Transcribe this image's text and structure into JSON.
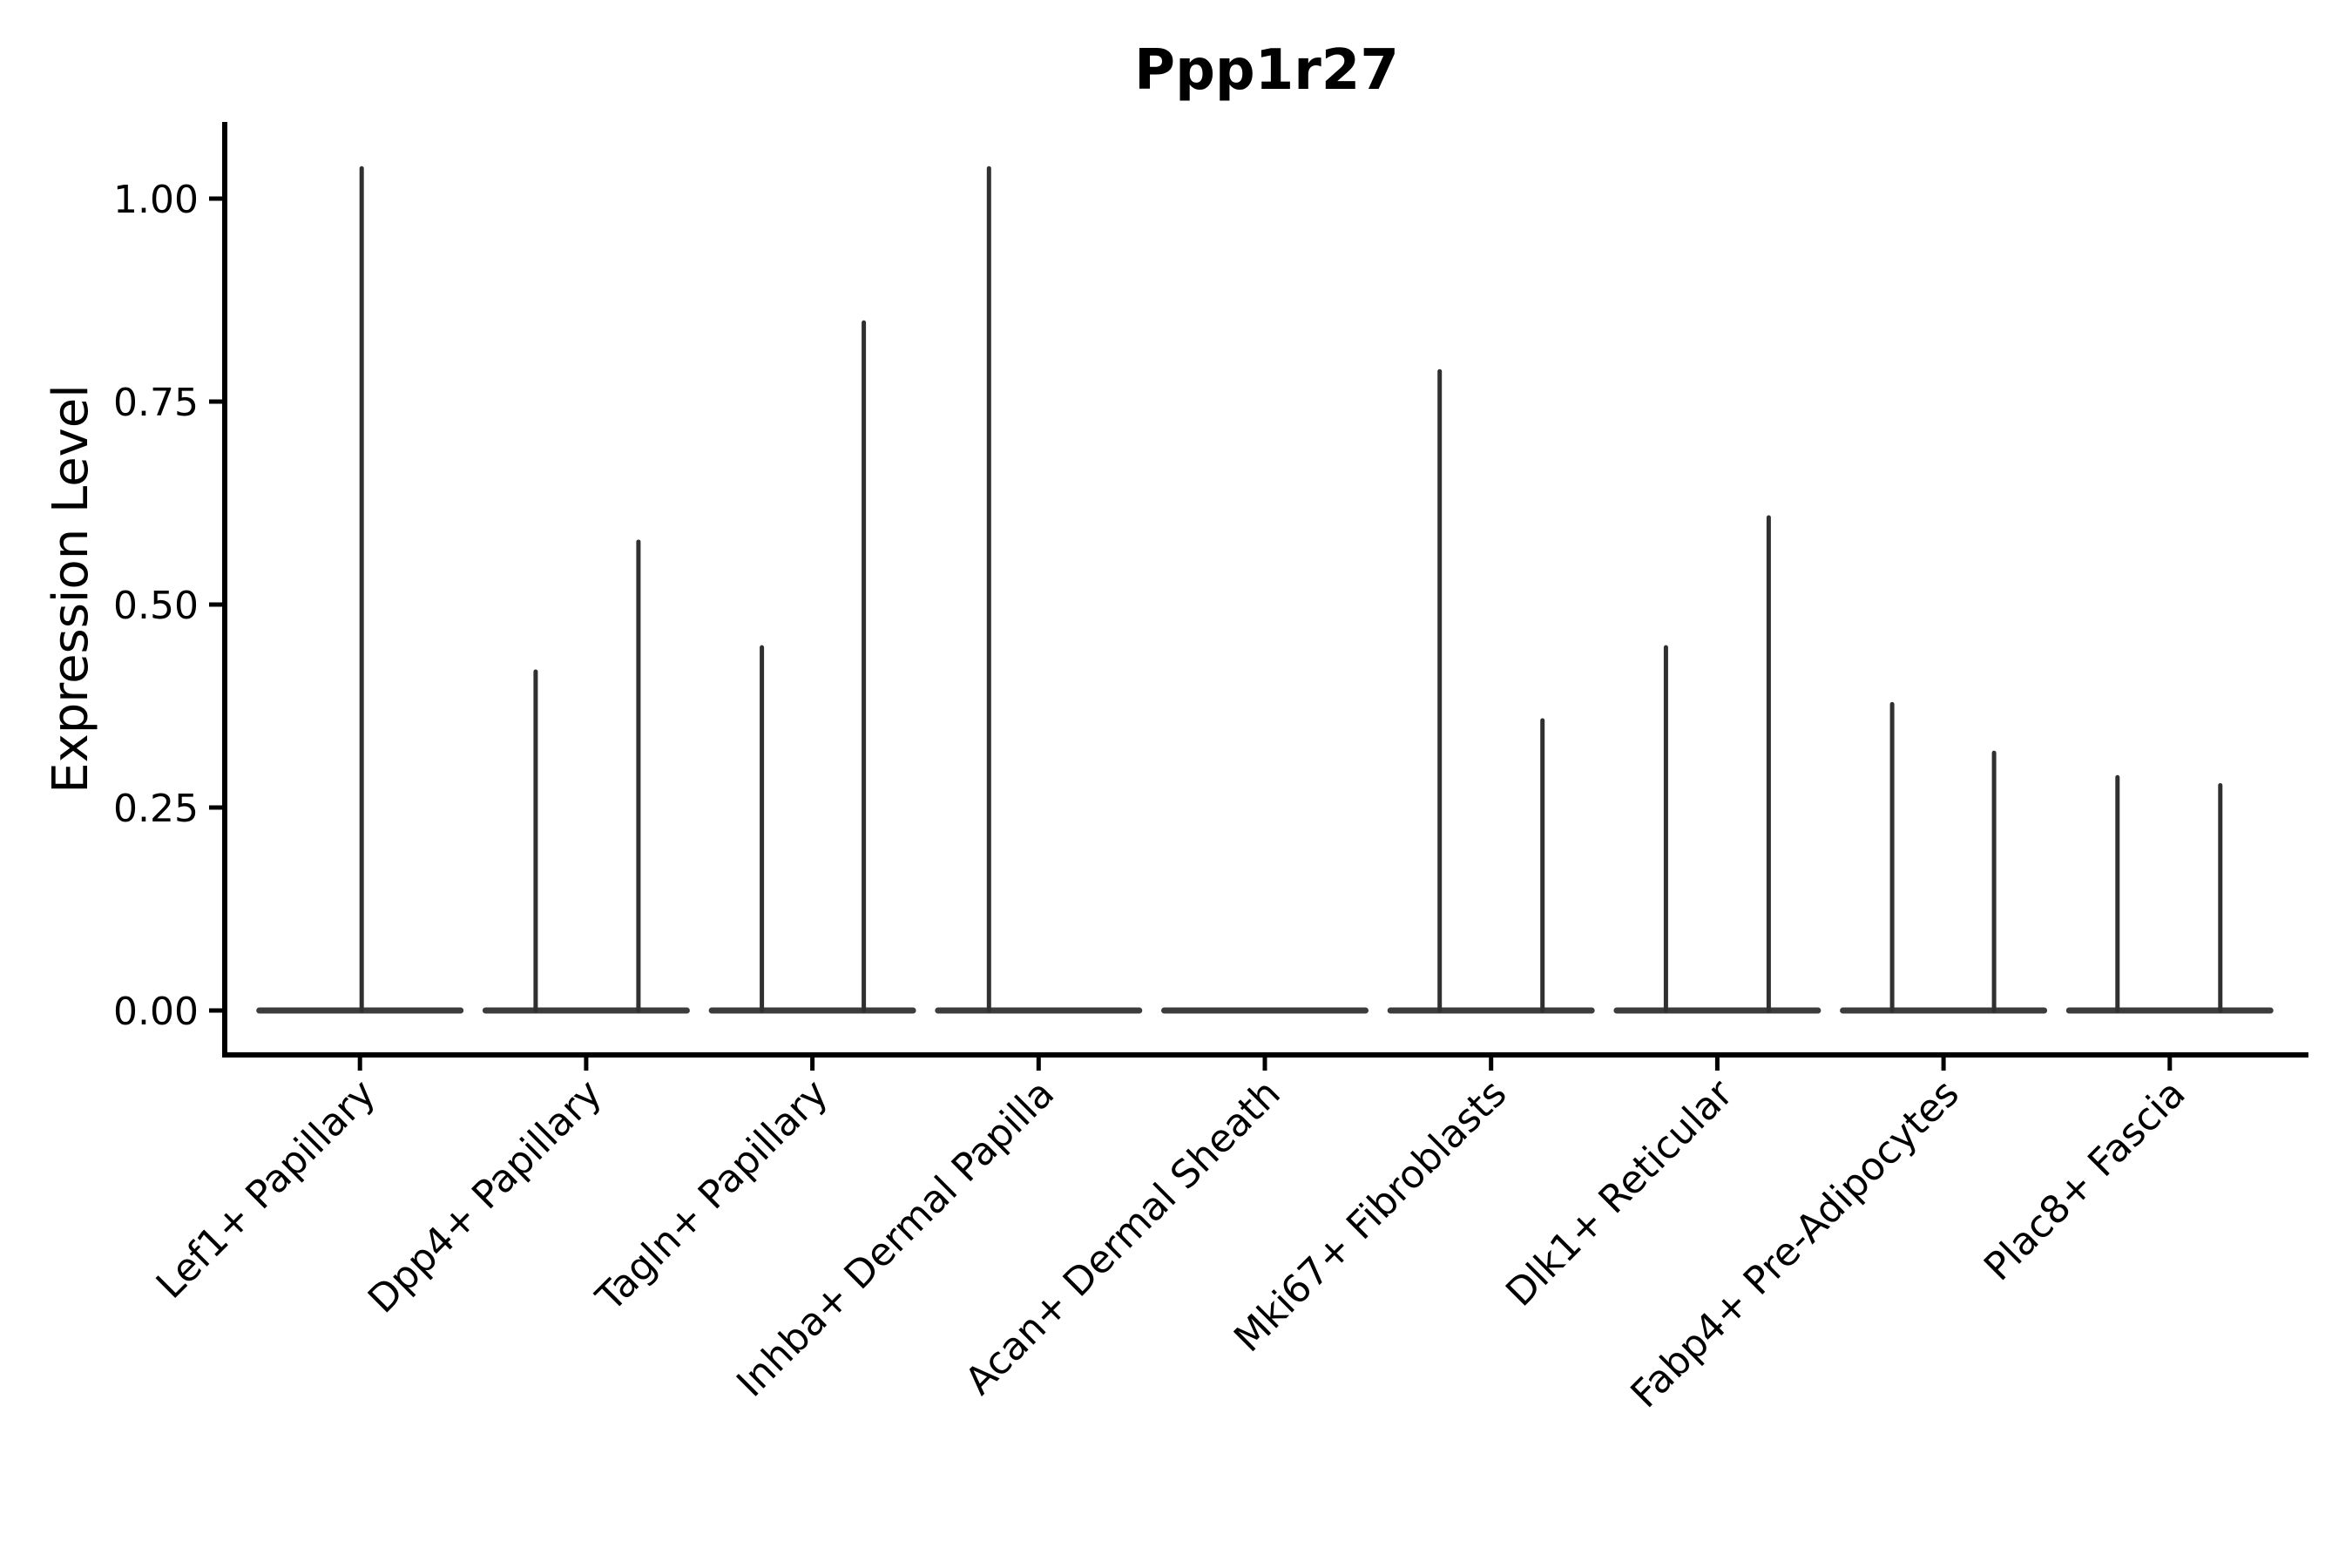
{
  "title": "Ppp1r27",
  "colors": {
    "spike": "#303030",
    "baseline": "#3c3c3c",
    "axis": "#000000",
    "text": "#000000",
    "background": "#ffffff"
  },
  "chart_data": {
    "type": "violin",
    "title": "Ppp1r27",
    "xlabel": "",
    "ylabel": "Expression Level",
    "ylim": [
      0,
      1.08
    ],
    "yticks": [
      0.0,
      0.25,
      0.5,
      0.75,
      1.0
    ],
    "ytick_labels": [
      "0.00",
      "0.25",
      "0.50",
      "0.75",
      "1.00"
    ],
    "grid": false,
    "legend": null,
    "categories": [
      "Lef1+ Papillary",
      "Dpp4+ Papillary",
      "Tagln+ Papillary",
      "Inhba+ Dermal Papilla",
      "Acan+ Dermal Sheath",
      "Mki67+ Fibroblasts",
      "Dlk1+ Reticular",
      "Fabp4+ Pre-Adipocytes",
      "Plac8+ Fascia"
    ],
    "series": [
      {
        "category": "Lef1+ Papillary",
        "spikes": [
          {
            "x_offset": 2,
            "max": 1.04
          }
        ]
      },
      {
        "category": "Dpp4+ Papillary",
        "spikes": [
          {
            "x_offset": -58,
            "max": 0.42
          },
          {
            "x_offset": 60,
            "max": 0.58
          }
        ]
      },
      {
        "category": "Tagln+ Papillary",
        "spikes": [
          {
            "x_offset": -58,
            "max": 0.45
          },
          {
            "x_offset": 59,
            "max": 0.85
          }
        ]
      },
      {
        "category": "Inhba+ Dermal Papilla",
        "spikes": [
          {
            "x_offset": -57,
            "max": 1.04
          }
        ]
      },
      {
        "category": "Acan+ Dermal Sheath",
        "spikes": []
      },
      {
        "category": "Mki67+ Fibroblasts",
        "spikes": [
          {
            "x_offset": -59,
            "max": 0.79
          },
          {
            "x_offset": 59,
            "max": 0.36
          }
        ]
      },
      {
        "category": "Dlk1+ Reticular",
        "spikes": [
          {
            "x_offset": -59,
            "max": 0.45
          },
          {
            "x_offset": 59,
            "max": 0.61
          }
        ]
      },
      {
        "category": "Fabp4+ Pre-Adipocytes",
        "spikes": [
          {
            "x_offset": -59,
            "max": 0.38
          },
          {
            "x_offset": 58,
            "max": 0.32
          }
        ]
      },
      {
        "category": "Plac8+ Fascia",
        "spikes": [
          {
            "x_offset": -60,
            "max": 0.29
          },
          {
            "x_offset": 58,
            "max": 0.28
          }
        ]
      }
    ]
  }
}
